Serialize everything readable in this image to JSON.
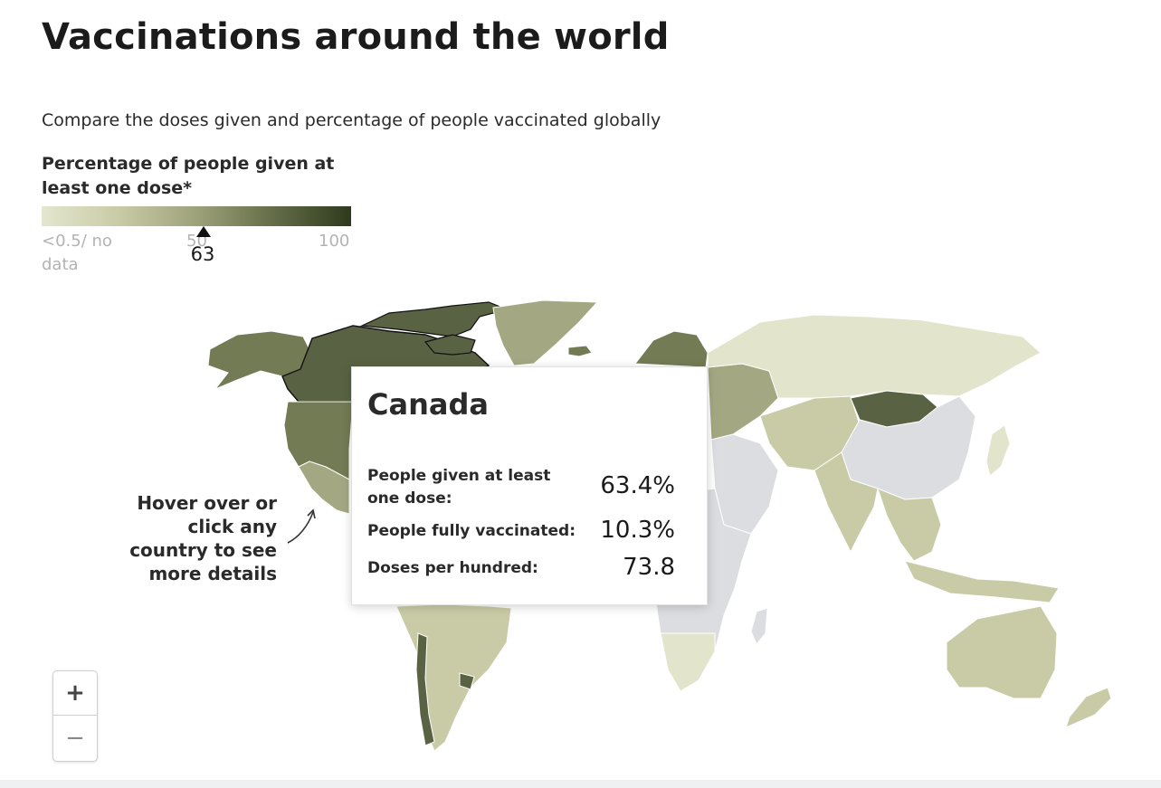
{
  "title": "Vaccinations around the world",
  "subtitle": "Compare the doses given and percentage of people vaccinated globally",
  "legend": {
    "title": "Percentage of people given at least one dose*",
    "min_label": "<0.5/ no data",
    "mid_label": "50",
    "max_label": "100",
    "marker_value": "63",
    "marker_fraction": 0.63,
    "colors": [
      "#e4e6cf",
      "#c9cba6",
      "#9ea27b",
      "#6f7751",
      "#2e3a1d"
    ]
  },
  "hint": "Hover over or click any country to see more details",
  "tooltip": {
    "country": "Canada",
    "rows": [
      {
        "label": "People given at least one dose:",
        "value": "63.4%"
      },
      {
        "label": "People fully vaccinated:",
        "value": "10.3%"
      },
      {
        "label": "Doses per hundred:",
        "value": "73.8"
      }
    ]
  },
  "zoom": {
    "in_label": "+",
    "out_label": "−"
  },
  "map_colors": {
    "no_data": "#dcdde1",
    "low": "#e2e4cc",
    "mid_low": "#c9cba6",
    "mid": "#a3a782",
    "high": "#737b54",
    "very_high": "#596343",
    "border": "#ffffff"
  }
}
